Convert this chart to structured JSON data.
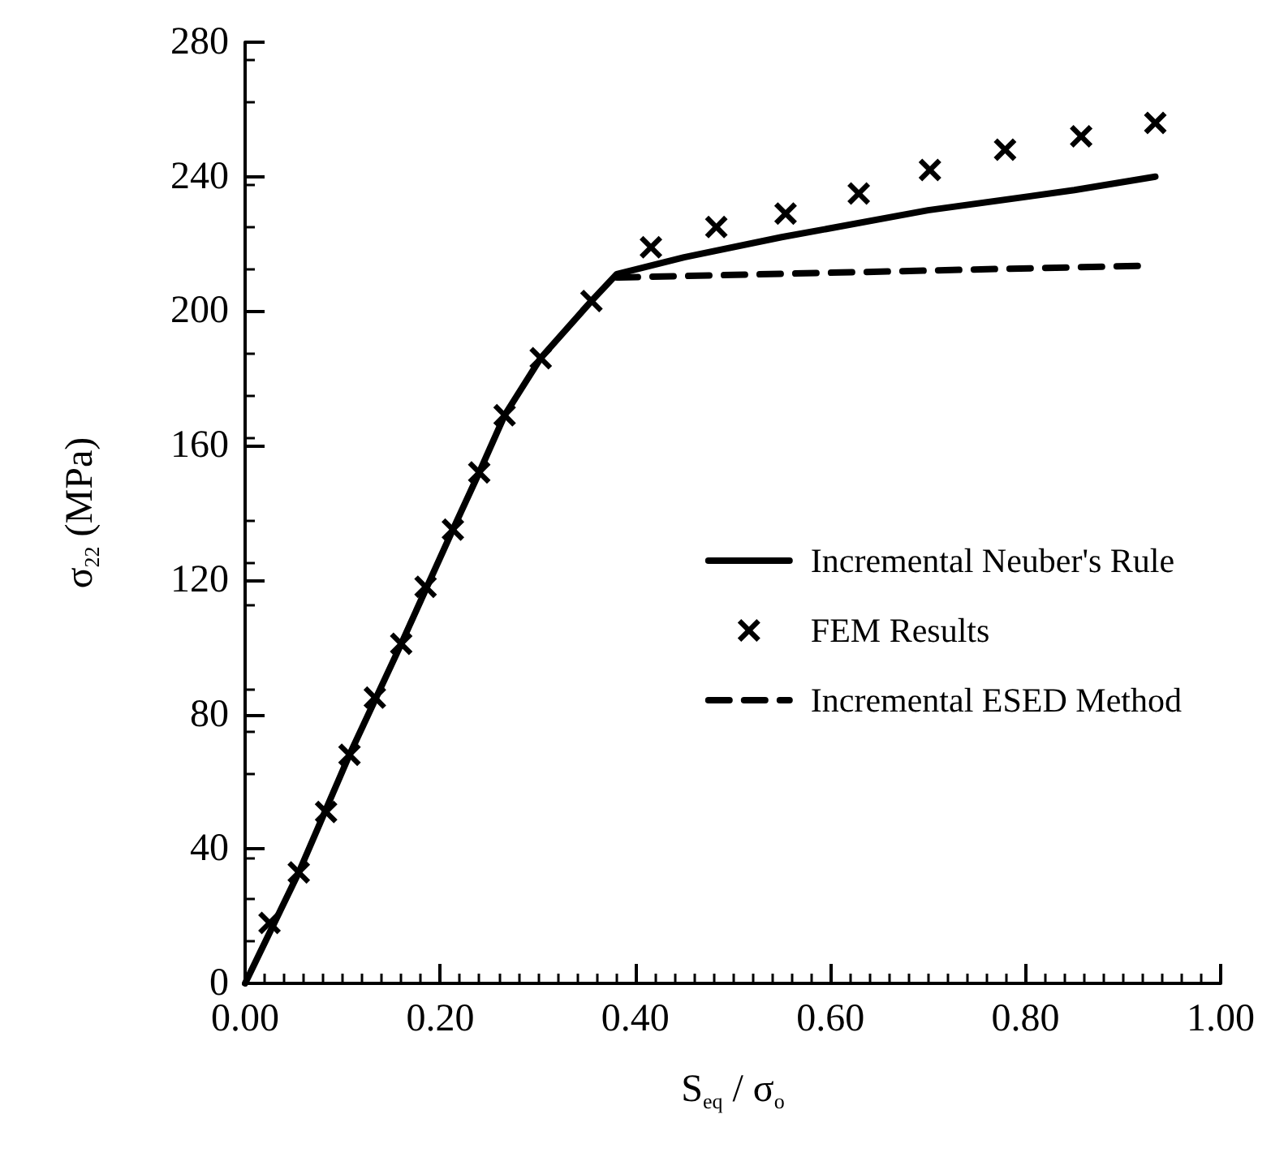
{
  "chart_data": {
    "type": "line",
    "xlabel": "S$_{eq}$ / σ$_{o}$",
    "ylabel": "σ$_{22}$ (MPa)",
    "xlim": [
      0,
      1
    ],
    "xticks": [
      {
        "value": 0,
        "label": "0.00"
      },
      {
        "value": 0.2,
        "label": "0.20"
      },
      {
        "value": 0.4,
        "label": "0.40"
      },
      {
        "value": 0.6,
        "label": "0.60"
      },
      {
        "value": 0.8,
        "label": "0.80"
      },
      {
        "value": 1,
        "label": "1.00"
      }
    ],
    "ylim": [
      0,
      280
    ],
    "yticks": [
      0,
      40,
      80,
      120,
      160,
      200,
      240,
      280
    ],
    "grid": false,
    "legend": "right",
    "series": [
      {
        "name": "Incremental Neuber's Rule",
        "line_style": "solid",
        "marker": "none",
        "color": "#000000",
        "x": [
          0,
          0.055,
          0.107,
          0.16,
          0.213,
          0.24,
          0.266,
          0.303,
          0.355,
          0.381,
          0.45,
          0.55,
          0.7,
          0.85,
          0.933
        ],
        "values": [
          0,
          33,
          68,
          101,
          135,
          152,
          169,
          186,
          203,
          211,
          216,
          222,
          230,
          236,
          240
        ]
      },
      {
        "name": "FEM Results",
        "type": "scatter",
        "marker": "cross",
        "color": "#000000",
        "x": [
          0.025,
          0.055,
          0.083,
          0.107,
          0.133,
          0.16,
          0.185,
          0.213,
          0.24,
          0.266,
          0.303,
          0.355,
          0.416,
          0.483,
          0.554,
          0.629,
          0.702,
          0.779,
          0.857,
          0.933
        ],
        "values": [
          18,
          33,
          51,
          68,
          85,
          101,
          118,
          135,
          152,
          169,
          186,
          203,
          219,
          225,
          229,
          235,
          242,
          248,
          252,
          256
        ]
      },
      {
        "name": "Incremental ESED Method",
        "line_style": "dashed",
        "marker": "none",
        "color": "#000000",
        "x": [
          0.381,
          0.922
        ],
        "values": [
          210,
          213.5
        ]
      }
    ]
  }
}
